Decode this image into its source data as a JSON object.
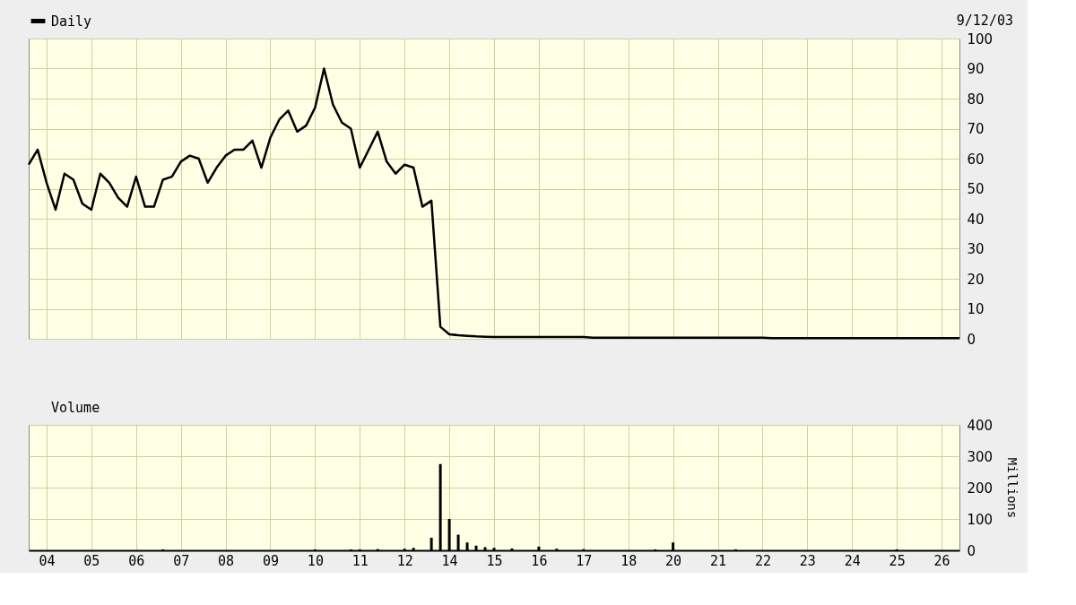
{
  "chart_data": [
    {
      "type": "line",
      "annotations": [
        "9/12/03"
      ],
      "legend": "top left",
      "grid": true,
      "marker": "none",
      "tick_labels": "y",
      "categories": [
        null,
        null,
        "04",
        null,
        null,
        null,
        null,
        "05",
        null,
        null,
        null,
        null,
        "06",
        null,
        null,
        null,
        null,
        "07",
        null,
        null,
        null,
        null,
        "08",
        null,
        null,
        null,
        null,
        "09",
        null,
        null,
        null,
        null,
        "10",
        null,
        null,
        null,
        null,
        "11",
        null,
        null,
        null,
        null,
        "12",
        null,
        null,
        null,
        null,
        "14",
        null,
        null,
        null,
        null,
        "15",
        null,
        null,
        null,
        null,
        "16",
        null,
        null,
        null,
        null,
        "17",
        null,
        null,
        null,
        null,
        "18",
        null,
        null,
        null,
        null,
        "20",
        null,
        null,
        null,
        null,
        "21",
        null,
        null,
        null,
        null,
        "22",
        null,
        null,
        null,
        null,
        "23",
        null,
        null,
        null,
        null,
        "24",
        null,
        null,
        null,
        null,
        "25",
        null,
        null,
        null,
        null,
        "26",
        null,
        null
      ],
      "ylim": [
        0,
        100
      ],
      "yticks": [
        0,
        10,
        20,
        30,
        40,
        50,
        60,
        70,
        80,
        90,
        100
      ],
      "series": [
        {
          "name": "Daily",
          "color": "#000000",
          "values": [
            58,
            63,
            52,
            43,
            55,
            53,
            45,
            43,
            55,
            52,
            47,
            44,
            54,
            44,
            44,
            53,
            54,
            59,
            61,
            60,
            52,
            57,
            61,
            63,
            63,
            66,
            57,
            67,
            73,
            76,
            69,
            71,
            77,
            90,
            78,
            72,
            70,
            57,
            63,
            69,
            59,
            55,
            58,
            57,
            44,
            46,
            4,
            1.5,
            1.2,
            1,
            0.8,
            0.7,
            0.6,
            0.6,
            0.6,
            0.6,
            0.6,
            0.6,
            0.6,
            0.6,
            0.6,
            0.6,
            0.6,
            0.4,
            0.4,
            0.4,
            0.4,
            0.4,
            0.4,
            0.4,
            0.4,
            0.4,
            0.4,
            0.4,
            0.4,
            0.4,
            0.4,
            0.4,
            0.4,
            0.4,
            0.4,
            0.4,
            0.4,
            0.2,
            0.2,
            0.2,
            0.2,
            0.2,
            0.2,
            0.2,
            0.2,
            0.2,
            0.2,
            0.2,
            0.2,
            0.2,
            0.2,
            0.2,
            0.2,
            0.2,
            0.2,
            0.2,
            0.2,
            0.2,
            0.2
          ]
        }
      ]
    },
    {
      "type": "bar",
      "legend": "top left",
      "grid": true,
      "ylabel": "Millions",
      "categories": [
        null,
        null,
        "04",
        null,
        null,
        null,
        null,
        "05",
        null,
        null,
        null,
        null,
        "06",
        null,
        null,
        null,
        null,
        "07",
        null,
        null,
        null,
        null,
        "08",
        null,
        null,
        null,
        null,
        "09",
        null,
        null,
        null,
        null,
        "10",
        null,
        null,
        null,
        null,
        "11",
        null,
        null,
        null,
        null,
        "12",
        null,
        null,
        null,
        null,
        "14",
        null,
        null,
        null,
        null,
        "15",
        null,
        null,
        null,
        null,
        "16",
        null,
        null,
        null,
        null,
        "17",
        null,
        null,
        null,
        null,
        "18",
        null,
        null,
        null,
        null,
        "20",
        null,
        null,
        null,
        null,
        "21",
        null,
        null,
        null,
        null,
        "22",
        null,
        null,
        null,
        null,
        "23",
        null,
        null,
        null,
        null,
        "24",
        null,
        null,
        null,
        null,
        "25",
        null,
        null,
        null,
        null,
        "26",
        null,
        null
      ],
      "ylim": [
        0,
        400
      ],
      "yticks": [
        0,
        100,
        200,
        300,
        400
      ],
      "series": [
        {
          "name": "Volume",
          "color": "#000000",
          "values": [
            null,
            null,
            null,
            null,
            null,
            null,
            null,
            null,
            null,
            null,
            null,
            null,
            null,
            null,
            null,
            3,
            null,
            null,
            null,
            null,
            null,
            null,
            null,
            null,
            null,
            null,
            null,
            null,
            null,
            null,
            null,
            null,
            3,
            null,
            null,
            null,
            3,
            3,
            null,
            4,
            null,
            null,
            5,
            8,
            null,
            40,
            275,
            100,
            50,
            25,
            15,
            10,
            8,
            null,
            6,
            null,
            null,
            12,
            null,
            5,
            null,
            null,
            4,
            null,
            null,
            null,
            null,
            null,
            null,
            null,
            3,
            null,
            25,
            null,
            null,
            null,
            null,
            null,
            null,
            3,
            null,
            null,
            null,
            null,
            null,
            null,
            null,
            null,
            null,
            null,
            null,
            null,
            null,
            null,
            null,
            null,
            null,
            3,
            null,
            null,
            null,
            null,
            null,
            null,
            null
          ]
        }
      ]
    }
  ]
}
